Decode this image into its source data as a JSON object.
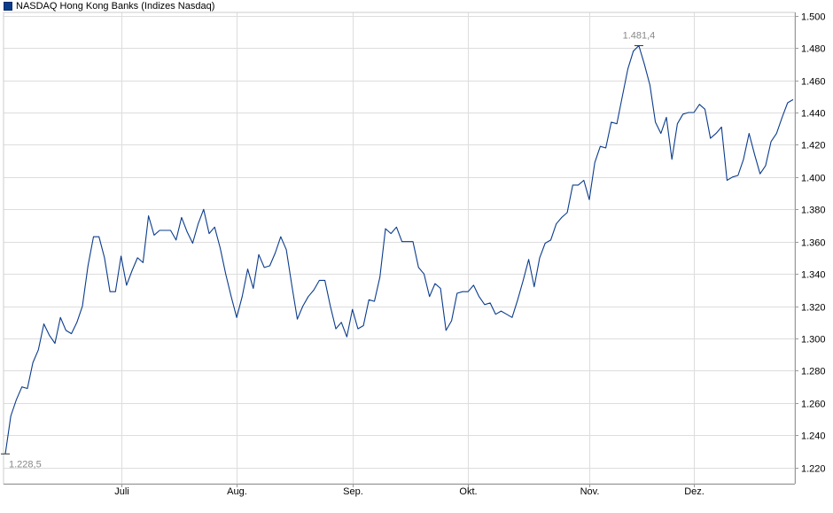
{
  "chart_data": {
    "type": "line",
    "legend": "NASDAQ Hong Kong Banks (Indizes Nasdaq)",
    "series": [
      {
        "name": "NASDAQ Hong Kong Banks (Indizes Nasdaq)",
        "values": [
          1228.5,
          1252,
          1262,
          1270,
          1269,
          1285,
          1293,
          1309,
          1302,
          1297,
          1313,
          1305,
          1303,
          1310,
          1320,
          1345,
          1363,
          1363,
          1350,
          1329,
          1329,
          1351,
          1333,
          1342,
          1350,
          1347,
          1376,
          1364,
          1367,
          1367,
          1367,
          1361,
          1375,
          1366,
          1359,
          1371,
          1380,
          1365,
          1369,
          1356,
          1340,
          1326,
          1313,
          1326,
          1343,
          1331,
          1352,
          1344,
          1345,
          1353,
          1363,
          1355,
          1333,
          1312,
          1320,
          1326,
          1330,
          1336,
          1336,
          1320,
          1306,
          1310,
          1301,
          1318,
          1306,
          1308,
          1324,
          1323,
          1338,
          1368,
          1365,
          1369,
          1360,
          1360,
          1360,
          1344,
          1340,
          1326,
          1334,
          1331,
          1305,
          1311,
          1328,
          1329,
          1329,
          1333,
          1326,
          1321,
          1322,
          1315,
          1317,
          1315,
          1313,
          1324,
          1336,
          1349,
          1332,
          1350,
          1359,
          1361,
          1371,
          1375,
          1378,
          1395,
          1395,
          1398,
          1386,
          1409,
          1419,
          1418,
          1434,
          1433,
          1450,
          1467,
          1478,
          1481.4,
          1470,
          1457,
          1434,
          1427,
          1437,
          1411,
          1433,
          1439,
          1440,
          1440,
          1445,
          1442,
          1424,
          1427,
          1431,
          1398,
          1400,
          1401,
          1411,
          1427,
          1414,
          1402,
          1407,
          1422,
          1427,
          1437,
          1446,
          1448
        ]
      }
    ],
    "x_ticks": [
      "Juli",
      "Aug.",
      "Sep.",
      "Okt.",
      "Nov.",
      "Dez."
    ],
    "y_ticks": [
      "1.220",
      "1.240",
      "1.260",
      "1.280",
      "1.300",
      "1.320",
      "1.340",
      "1.360",
      "1.380",
      "1.400",
      "1.420",
      "1.440",
      "1.460",
      "1.480",
      "1.500"
    ],
    "ylim": [
      1210,
      1502
    ],
    "min_label": "1.228,5",
    "max_label": "1.481,4",
    "colors": {
      "line": "#0b3c8c",
      "grid": "#dddddd",
      "axis": "#999999",
      "annotation": "#888888"
    },
    "grid": true,
    "legend_position": "top-left"
  }
}
